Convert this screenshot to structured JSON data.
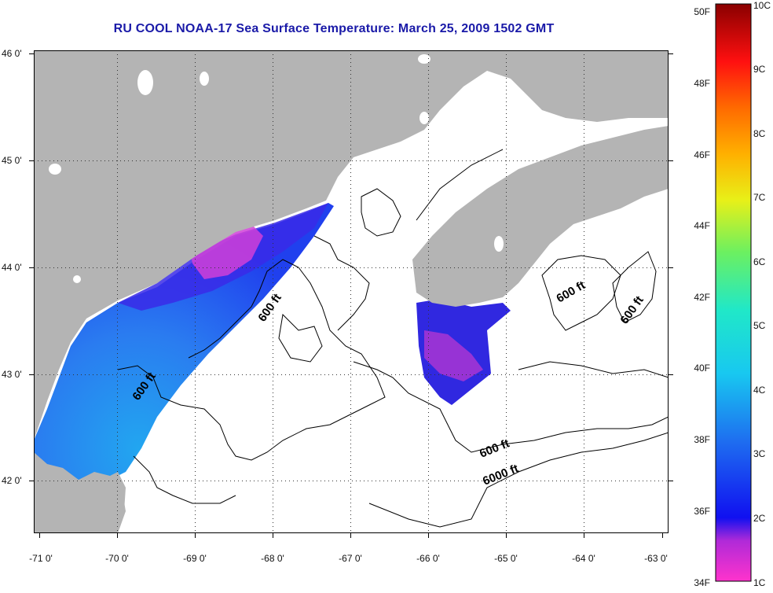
{
  "title": "RU COOL  NOAA-17  Sea Surface Temperature:  March 25, 2009 1502 GMT",
  "map": {
    "lon_ticks": [
      "-71 0'",
      "-70 0'",
      "-69 0'",
      "-68 0'",
      "-67 0'",
      "-66 0'",
      "-65 0'",
      "-64 0'",
      "-63 0'"
    ],
    "lat_ticks": [
      "46 0'",
      "45 0'",
      "44 0'",
      "43 0'",
      "42 0'"
    ],
    "contour_labels": [
      "600 ft",
      "600 ft",
      "600 ft",
      "600 ft",
      "600 ft",
      "6000 ft"
    ],
    "colors": {
      "land": "#b4b4b4",
      "no_data": "#ffffff",
      "grid": "#333333"
    }
  },
  "colorbar": {
    "f_labels": [
      "50F",
      "48F",
      "46F",
      "44F",
      "42F",
      "40F",
      "38F",
      "36F",
      "34F"
    ],
    "c_labels": [
      "10C",
      "9C",
      "8C",
      "7C",
      "6C",
      "5C",
      "4C",
      "3C",
      "2C",
      "1C"
    ]
  }
}
